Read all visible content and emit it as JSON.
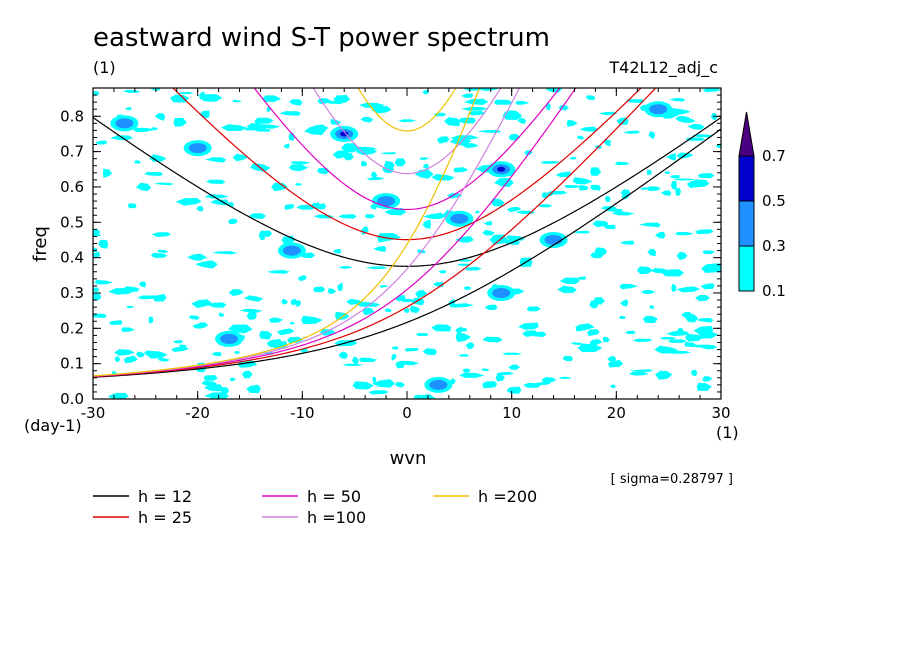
{
  "chart_data": {
    "type": "heatmap",
    "title": "eastward wind S-T power spectrum",
    "units_label": "(1)",
    "experiment": "T42L12_adj_c",
    "xlabel": "wvn",
    "ylabel": "freq",
    "x_units": "(1)",
    "y_units": "(day-1)",
    "xlim": [
      -30,
      30
    ],
    "ylim": [
      0.0,
      0.88
    ],
    "x_ticks": [
      "-30",
      "-20",
      "-10",
      "0",
      "10",
      "20",
      "30"
    ],
    "y_ticks": [
      "0.0",
      "0.1",
      "0.2",
      "0.3",
      "0.4",
      "0.5",
      "0.6",
      "0.7",
      "0.8"
    ],
    "colorbar": {
      "levels": [
        "0.1",
        "0.3",
        "0.5",
        "0.7"
      ],
      "colors": [
        "#00ffff",
        "#1e90ff",
        "#0000cd",
        "#4b0082"
      ]
    },
    "sigma_label": "[ sigma=0.28797 ]",
    "legend": [
      {
        "label": "h = 12",
        "color": "#000000",
        "h": 12
      },
      {
        "label": "h = 25",
        "color": "#e00000",
        "h": 25
      },
      {
        "label": "h = 50",
        "color": "#e000c0",
        "h": 50
      },
      {
        "label": "h =100",
        "color": "#d080e0",
        "h": 100
      },
      {
        "label": "h =200",
        "color": "#f0c000",
        "h": 200
      }
    ],
    "blobs": [
      {
        "x": -27,
        "y": 0.78,
        "level": 1
      },
      {
        "x": -20,
        "y": 0.71,
        "level": 1
      },
      {
        "x": -11,
        "y": 0.42,
        "level": 1
      },
      {
        "x": -6,
        "y": 0.75,
        "level": 2
      },
      {
        "x": 5,
        "y": 0.51,
        "level": 1
      },
      {
        "x": 9,
        "y": 0.65,
        "level": 2
      },
      {
        "x": 14,
        "y": 0.45,
        "level": 1
      },
      {
        "x": 24,
        "y": 0.82,
        "level": 1
      },
      {
        "x": -17,
        "y": 0.17,
        "level": 1
      },
      {
        "x": 9,
        "y": 0.3,
        "level": 1
      },
      {
        "x": 3,
        "y": 0.04,
        "level": 1
      },
      {
        "x": -2,
        "y": 0.56,
        "level": 1
      }
    ]
  }
}
